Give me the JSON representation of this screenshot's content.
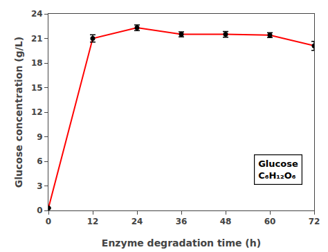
{
  "chart_data": {
    "type": "line",
    "x": [
      0,
      12,
      24,
      36,
      48,
      60,
      72
    ],
    "series": [
      {
        "values": [
          0.3,
          21.0,
          22.3,
          21.5,
          21.5,
          21.4,
          20.1
        ],
        "yerr": [
          0.0,
          0.45,
          0.35,
          0.3,
          0.35,
          0.3,
          0.55
        ],
        "color": "#ff0000",
        "colors": [
          "#000000",
          "#000000",
          "#000000",
          "#000000",
          "#000000",
          "#000000",
          "#000000"
        ],
        "marker": "circle"
      }
    ],
    "xlabel": "Enzyme degradation time (h)",
    "ylabel": "Glucose concentration (g/L)",
    "xlim": [
      0,
      72
    ],
    "ylim": [
      0,
      24
    ],
    "xticks": [
      0,
      12,
      24,
      36,
      48,
      60,
      72
    ],
    "yticks": [
      0,
      3,
      6,
      9,
      12,
      15,
      18,
      21,
      24
    ],
    "annotations": [
      "Glucose",
      "C₆H₁₂O₆"
    ],
    "grid": false
  }
}
